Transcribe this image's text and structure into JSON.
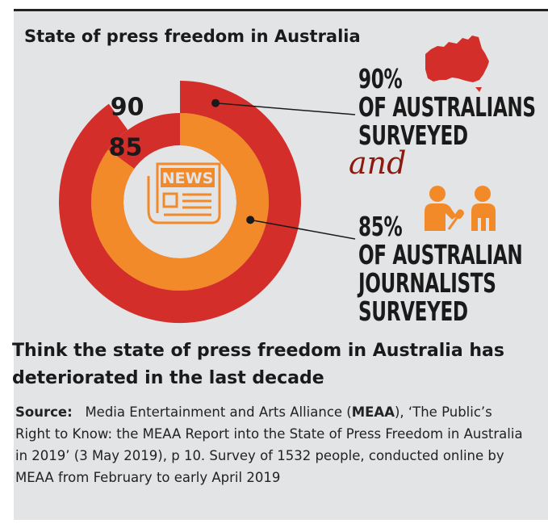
{
  "title": "State of press freedom in Australia",
  "chart_data": {
    "type": "donut",
    "series": [
      {
        "name": "Australians surveyed",
        "value": 90,
        "unit": "%",
        "color": "#d42e2a",
        "label": "90"
      },
      {
        "name": "Australian journalists surveyed",
        "value": 85,
        "unit": "%",
        "color": "#f28a2a",
        "label": "85"
      }
    ],
    "center_icon": "newspaper-icon",
    "center_icon_text": "NEWS"
  },
  "stats": {
    "australians": {
      "value": "90%",
      "line1": "OF AUSTRALIANS",
      "line2": "SURVEYED",
      "icon": "australia-map-icon"
    },
    "connector": "and",
    "journalists": {
      "value": "85%",
      "line1": "OF AUSTRALIAN",
      "line2": "JOURNALISTS",
      "line3": "SURVEYED",
      "icon": "interview-icon"
    }
  },
  "subtitle": "Think the state of press freedom in Australia has deteriorated in the last decade",
  "source": {
    "label": "Source:",
    "pre": "Media Entertainment and Arts Alliance (",
    "org": "MEAA",
    "post": "), ‘The Public’s Right to Know: the MEAA Report into the State of Press Freedom in Australia in 2019’ (3 May 2019), p 10. Survey of 1532 people, conducted online by MEAA from February to early April 2019"
  },
  "colors": {
    "red": "#d42e2a",
    "orange": "#f28a2a",
    "accent_text": "#8b1a10",
    "background": "#e3e4e6"
  }
}
